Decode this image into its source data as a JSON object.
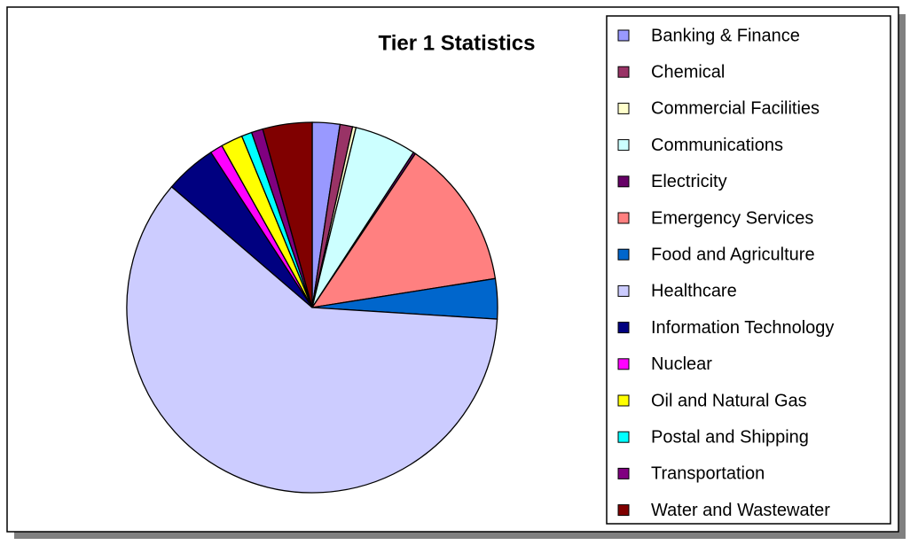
{
  "chart_data": {
    "type": "pie",
    "title": "Tier 1 Statistics",
    "categories": [
      "Banking & Finance",
      "Chemical",
      "Commercial Facilities",
      "Communications",
      "Electricity",
      "Emergency Services",
      "Food and Agriculture",
      "Healthcare",
      "Information Technology",
      "Nuclear",
      "Oil and Natural Gas",
      "Postal and Shipping",
      "Transportation",
      "Water and Wastewater"
    ],
    "values": [
      2.4,
      1.1,
      0.3,
      5.4,
      0.2,
      13.1,
      3.5,
      60.3,
      4.5,
      1.1,
      1.9,
      0.9,
      1.0,
      4.3
    ],
    "colors": [
      "#9999ff",
      "#993366",
      "#ffffcc",
      "#ccffff",
      "#660066",
      "#ff8080",
      "#0066cc",
      "#ccccff",
      "#000080",
      "#ff00ff",
      "#ffff00",
      "#00ffff",
      "#800080",
      "#800000"
    ],
    "legend": "right"
  }
}
